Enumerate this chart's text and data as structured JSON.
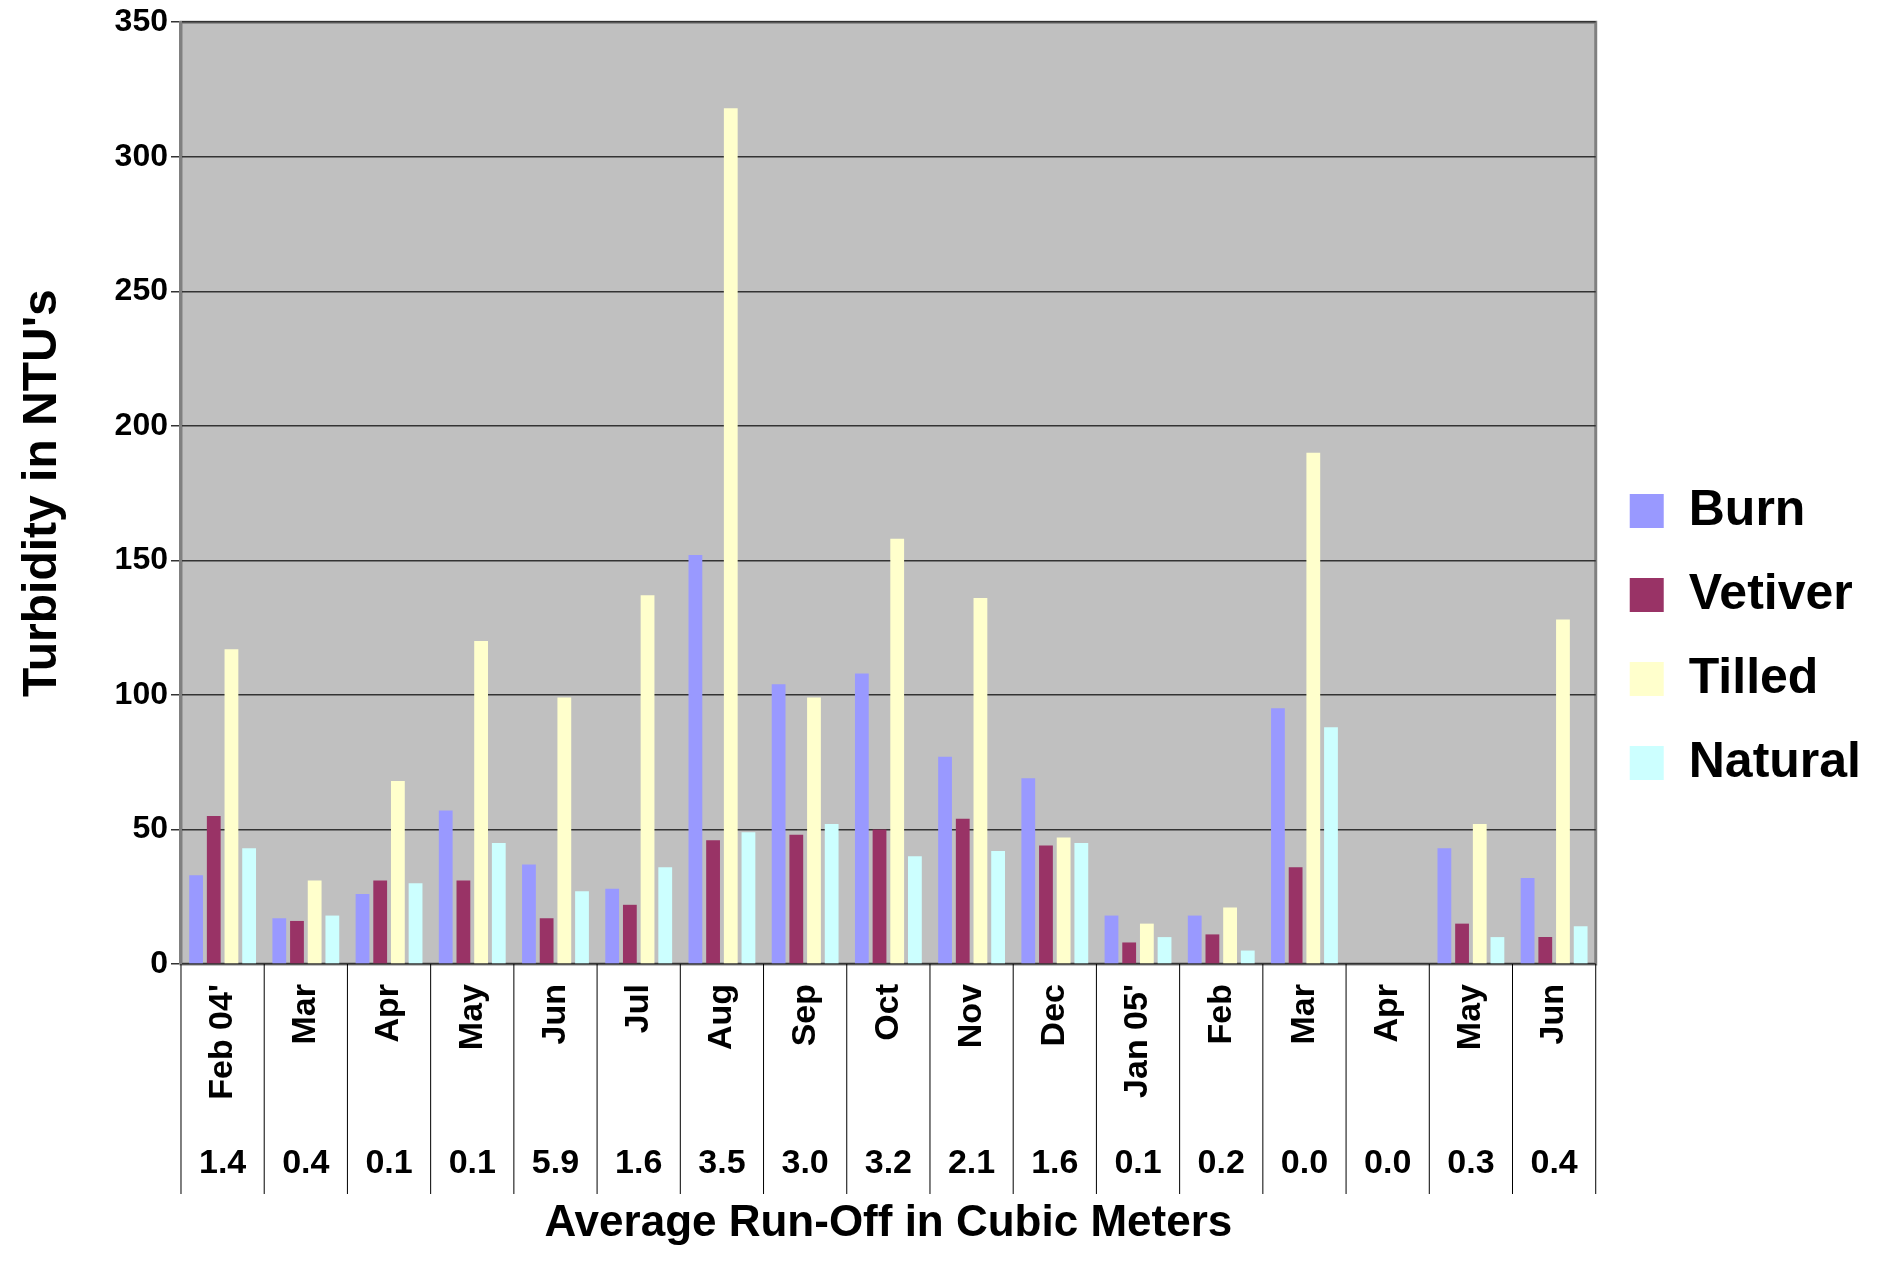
{
  "chart_data": {
    "type": "bar",
    "ylabel": "Turbidity in NTU's",
    "xlabel": "Average Run-Off in Cubic Meters",
    "categories": [
      "Feb 04'\n1.4",
      "Mar\n0.4",
      "Apr\n0.1",
      "May\n0.1",
      "Jun\n5.9",
      "Jul\n1.6",
      "Aug\n3.5",
      "Sep\n3.0",
      "Oct\n3.2",
      "Nov\n2.1",
      "Dec\n1.6",
      "Jan 05'\n0.1",
      "Feb\n0.2",
      "Mar\n0.0",
      "Apr\n0.0",
      "May\n0.3",
      "Jun\n0.4"
    ],
    "series": [
      {
        "name": "Burn",
        "color": "#9999ff",
        "values": [
          33,
          17,
          26,
          57,
          37,
          28,
          152,
          104,
          108,
          77,
          69,
          18,
          18,
          95,
          0,
          43,
          32
        ]
      },
      {
        "name": "Vetiver",
        "color": "#993366",
        "values": [
          55,
          16,
          31,
          31,
          17,
          22,
          46,
          48,
          50,
          54,
          44,
          8,
          11,
          36,
          0,
          15,
          10
        ]
      },
      {
        "name": "Tilled",
        "color": "#ffffcc",
        "values": [
          117,
          31,
          68,
          120,
          99,
          137,
          318,
          99,
          158,
          136,
          47,
          15,
          21,
          190,
          0,
          52,
          128
        ]
      },
      {
        "name": "Natural",
        "color": "#ccffff",
        "values": [
          43,
          18,
          30,
          45,
          27,
          36,
          49,
          52,
          40,
          42,
          45,
          10,
          5,
          88,
          0,
          10,
          14
        ]
      }
    ],
    "ylim": [
      0,
      350
    ],
    "yticks": [
      0,
      50,
      100,
      150,
      200,
      250,
      300,
      350
    ],
    "grid": "y",
    "legend": "right"
  }
}
